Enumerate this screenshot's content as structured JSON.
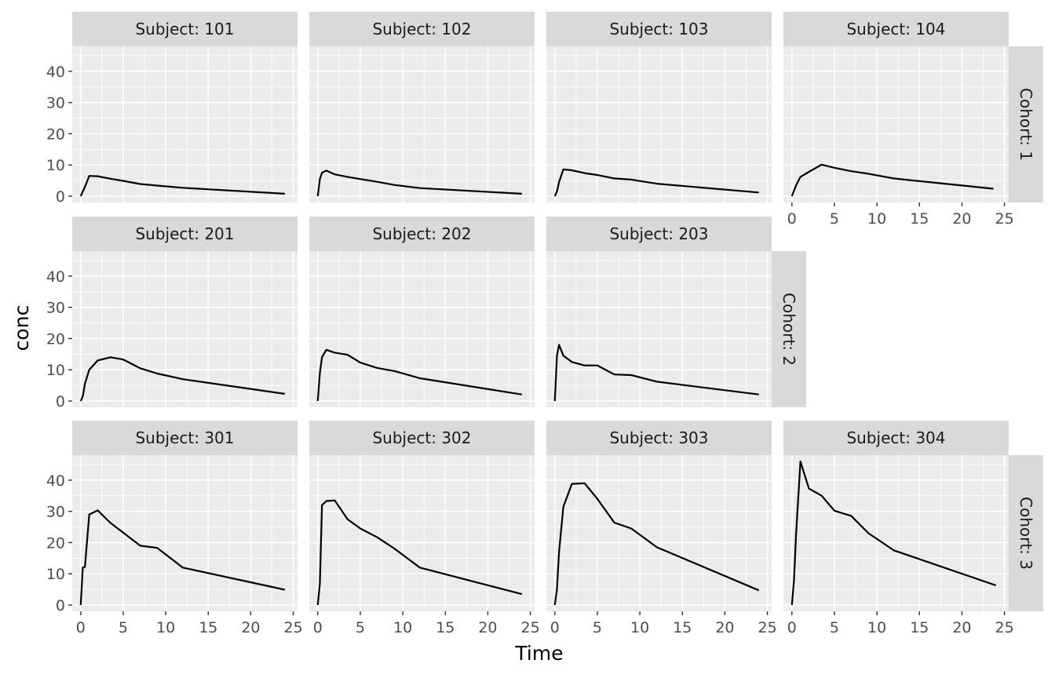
{
  "chart_data": {
    "type": "line",
    "facet_layout": "grid",
    "xlabel": "Time",
    "ylabel": "conc",
    "xlim": [
      -1,
      25.5
    ],
    "ylim": [
      -2,
      48
    ],
    "x_ticks": [
      0,
      5,
      10,
      15,
      20,
      25
    ],
    "y_ticks": [
      0,
      10,
      20,
      30,
      40
    ],
    "grid": true,
    "rows": [
      {
        "label": "Cohort: 1",
        "axis_col": 3
      },
      {
        "label": "Cohort: 2",
        "axis_col": null
      },
      {
        "label": "Cohort: 3",
        "axis_col": null
      }
    ],
    "panels": [
      {
        "label": "Subject: 101",
        "row": 0,
        "col": 0,
        "x": [
          0,
          0.5,
          1,
          2,
          3.5,
          5,
          7,
          9,
          12,
          24
        ],
        "y": [
          0,
          3,
          6.5,
          6.4,
          5.6,
          4.9,
          3.9,
          3.4,
          2.7,
          0.8
        ]
      },
      {
        "label": "Subject: 102",
        "row": 0,
        "col": 1,
        "x": [
          0,
          0.25,
          0.5,
          1,
          2,
          3.5,
          5,
          7,
          9,
          12,
          24
        ],
        "y": [
          0,
          5.5,
          7.5,
          8.2,
          7.0,
          6.2,
          5.5,
          4.6,
          3.6,
          2.6,
          0.8
        ]
      },
      {
        "label": "Subject: 103",
        "row": 0,
        "col": 2,
        "x": [
          0,
          0.25,
          0.5,
          1,
          2,
          3.5,
          5,
          7,
          9,
          12,
          24
        ],
        "y": [
          0,
          1.5,
          4.5,
          8.6,
          8.3,
          7.4,
          6.8,
          5.7,
          5.3,
          4.0,
          1.2
        ]
      },
      {
        "label": "Subject: 104",
        "row": 0,
        "col": 3,
        "x": [
          0,
          0.5,
          1,
          2,
          3.5,
          5,
          7,
          9,
          12,
          23.7
        ],
        "y": [
          0,
          3.5,
          6.2,
          7.8,
          10.1,
          9.1,
          8.0,
          7.2,
          5.7,
          2.4
        ]
      },
      {
        "label": "Subject: 201",
        "row": 1,
        "col": 0,
        "x": [
          0,
          0.25,
          0.5,
          1,
          2,
          3.5,
          5,
          7,
          9,
          12,
          24
        ],
        "y": [
          0,
          1.5,
          5.5,
          10,
          13,
          14,
          13.3,
          10.5,
          8.8,
          7.0,
          2.3
        ]
      },
      {
        "label": "Subject: 202",
        "row": 1,
        "col": 1,
        "x": [
          0,
          0.25,
          0.5,
          1,
          2,
          3.5,
          5,
          7,
          9,
          12,
          24
        ],
        "y": [
          0,
          9,
          14,
          16.4,
          15.5,
          14.8,
          12.3,
          10.6,
          9.6,
          7.3,
          2.1
        ]
      },
      {
        "label": "Subject: 203",
        "row": 1,
        "col": 2,
        "x": [
          0,
          0.25,
          0.5,
          1,
          2,
          3.5,
          5,
          7,
          9,
          12,
          24
        ],
        "y": [
          0,
          14.5,
          18,
          14.5,
          12.5,
          11.4,
          11.4,
          8.5,
          8.3,
          6.2,
          2.1
        ]
      },
      {
        "label": "Subject: 301",
        "row": 2,
        "col": 0,
        "x": [
          0,
          0.25,
          0.5,
          1,
          2,
          3.5,
          5,
          7,
          9,
          12,
          24
        ],
        "y": [
          0,
          12,
          12.2,
          29,
          30.3,
          26.3,
          23.2,
          19,
          18.3,
          12,
          4.9
        ]
      },
      {
        "label": "Subject: 302",
        "row": 2,
        "col": 1,
        "x": [
          0,
          0.25,
          0.5,
          1,
          2,
          3.5,
          5,
          7,
          9,
          12,
          24
        ],
        "y": [
          0,
          7,
          32,
          33.3,
          33.5,
          27.5,
          24.5,
          21.7,
          18.1,
          12,
          3.5
        ]
      },
      {
        "label": "Subject: 303",
        "row": 2,
        "col": 2,
        "x": [
          0,
          0.25,
          0.5,
          1,
          2,
          3.5,
          5,
          7,
          9,
          12,
          24
        ],
        "y": [
          0,
          5,
          17,
          31.5,
          38.8,
          39,
          34,
          26.4,
          24.5,
          18.5,
          4.7
        ]
      },
      {
        "label": "Subject: 304",
        "row": 2,
        "col": 3,
        "x": [
          0,
          0.25,
          0.5,
          1,
          2,
          3.5,
          5,
          7,
          9,
          12,
          24
        ],
        "y": [
          0,
          8,
          23,
          46,
          37.3,
          35,
          30.2,
          28.5,
          23,
          17.5,
          6.3
        ]
      }
    ]
  }
}
